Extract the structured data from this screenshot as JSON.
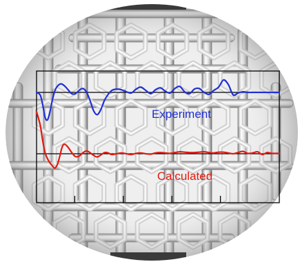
{
  "chart_data": {
    "type": "line",
    "background": "fullerene-cage-rendering",
    "title": "",
    "xlabel": "",
    "ylabel": "",
    "x_ticks": 5,
    "grid": false,
    "legend": "inline text labels inside plot",
    "xlim": [
      0,
      100
    ],
    "series": [
      {
        "name": "Experiment",
        "color": "#1f2fd6",
        "baseline": 0,
        "x": [
          0,
          1.5,
          2.5,
          3.5,
          4.5,
          5.5,
          6.5,
          7.5,
          8.5,
          10,
          11.5,
          13,
          14.5,
          16,
          17.5,
          19,
          20.5,
          22,
          23.5,
          25,
          26.5,
          28,
          29.5,
          31,
          33,
          35,
          37,
          39,
          41,
          43,
          45,
          47,
          49,
          51,
          53,
          55,
          57,
          59,
          61,
          63,
          65,
          67,
          69,
          71,
          73,
          75,
          77,
          79,
          81,
          83,
          85,
          87,
          90,
          93,
          96,
          100
        ],
        "y": [
          0,
          -0.4,
          -1.8,
          -3.8,
          -4.2,
          -3.0,
          -1.2,
          0.2,
          0.9,
          1.3,
          1.0,
          0.4,
          -0.2,
          -0.2,
          0.3,
          0.6,
          0.1,
          -1.2,
          -2.8,
          -3.4,
          -2.6,
          -1.2,
          -0.3,
          0.3,
          0.5,
          0.4,
          0.1,
          -0.1,
          0.5,
          0.8,
          0.3,
          -0.2,
          0.4,
          0.7,
          0.2,
          -0.1,
          0.6,
          0.9,
          0.1,
          -0.2,
          0.5,
          0.6,
          0.0,
          -0.3,
          0.3,
          0.8,
          1.9,
          1.2,
          -0.4,
          -0.1,
          0.1,
          0.0,
          0.0,
          0.0,
          0.0,
          0.0
        ]
      },
      {
        "name": "Calculated",
        "color": "#e01b10",
        "baseline": 0,
        "x": [
          0,
          1.5,
          2.5,
          3.5,
          5,
          6.5,
          7.5,
          8.5,
          9.5,
          10.5,
          11.5,
          13,
          14.5,
          16,
          17.5,
          19,
          20.5,
          22,
          23.5,
          25,
          26.5,
          28,
          29.5,
          31,
          33,
          35,
          37,
          39,
          41,
          43,
          45,
          47,
          49,
          51,
          53,
          55,
          57,
          59,
          61,
          63,
          65,
          67,
          69,
          71,
          73,
          75,
          77,
          79,
          81,
          83,
          85,
          87,
          89,
          91,
          93,
          95,
          97,
          100
        ],
        "y": [
          10.5,
          7.2,
          3.4,
          0.3,
          -1.8,
          -3.0,
          -3.6,
          -2.8,
          -0.8,
          1.6,
          2.4,
          1.6,
          0.3,
          -0.7,
          -0.6,
          0.2,
          0.7,
          0.3,
          -0.4,
          -0.8,
          -0.3,
          0.3,
          0.2,
          -0.2,
          0.0,
          0.2,
          0.0,
          -0.2,
          0.1,
          0.2,
          0.0,
          -0.1,
          0.2,
          0.3,
          0.2,
          0.1,
          0.3,
          0.5,
          0.4,
          0.3,
          0.3,
          0.4,
          0.5,
          0.3,
          0.2,
          0.4,
          0.4,
          0.2,
          0.0,
          0.3,
          0.6,
          0.1,
          0.2,
          0.5,
          -0.2,
          0.3,
          0.1,
          0.1
        ]
      }
    ]
  }
}
